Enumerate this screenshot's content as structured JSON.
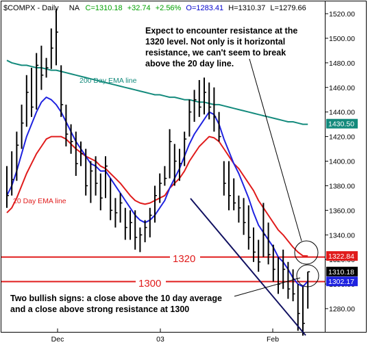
{
  "header": {
    "symbol": "$COMPX - Daily",
    "exchange": "NA",
    "close": "C=1310.18",
    "change": "+32.74",
    "change_pct": "+2.56%",
    "open": "O=1283.41",
    "high": "H=1310.37",
    "low": "L=1279.66"
  },
  "colors": {
    "background": "#ffffff",
    "price_bars": "#000000",
    "ema200": "#138a7c",
    "ema20": "#e01b1b",
    "ema10": "#1e22e0",
    "resistance": "#e01b1b",
    "trendline": "#101060",
    "header_up": "#00a000",
    "header_link": "#0000cc"
  },
  "chart_data": {
    "type": "ohlc",
    "ylim": [
      1240,
      1530
    ],
    "yticks": [
      "1520.00",
      "1500.00",
      "1480.00",
      "1460.00",
      "1440.00",
      "1420.00",
      "1400.00",
      "1380.00",
      "1360.00",
      "1340.00",
      "1320.00",
      "1300.00",
      "1280.00"
    ],
    "xticks": [
      "Dec",
      "03",
      "Feb"
    ],
    "bars": [
      {
        "h": 1396,
        "l": 1362,
        "c": 1372
      },
      {
        "h": 1408,
        "l": 1372,
        "c": 1385
      },
      {
        "h": 1424,
        "l": 1384,
        "c": 1413
      },
      {
        "h": 1446,
        "l": 1410,
        "c": 1431
      },
      {
        "h": 1470,
        "l": 1428,
        "c": 1456
      },
      {
        "h": 1476,
        "l": 1436,
        "c": 1444
      },
      {
        "h": 1488,
        "l": 1442,
        "c": 1478
      },
      {
        "h": 1494,
        "l": 1458,
        "c": 1470
      },
      {
        "h": 1484,
        "l": 1468,
        "c": 1476
      },
      {
        "h": 1508,
        "l": 1475,
        "c": 1492
      },
      {
        "h": 1524,
        "l": 1478,
        "c": 1505
      },
      {
        "h": 1478,
        "l": 1436,
        "c": 1446
      },
      {
        "h": 1446,
        "l": 1412,
        "c": 1422
      },
      {
        "h": 1430,
        "l": 1406,
        "c": 1416
      },
      {
        "h": 1424,
        "l": 1388,
        "c": 1398
      },
      {
        "h": 1416,
        "l": 1396,
        "c": 1406
      },
      {
        "h": 1410,
        "l": 1372,
        "c": 1380
      },
      {
        "h": 1400,
        "l": 1366,
        "c": 1392
      },
      {
        "h": 1404,
        "l": 1372,
        "c": 1382
      },
      {
        "h": 1390,
        "l": 1360,
        "c": 1370
      },
      {
        "h": 1404,
        "l": 1370,
        "c": 1396
      },
      {
        "h": 1386,
        "l": 1352,
        "c": 1360
      },
      {
        "h": 1370,
        "l": 1346,
        "c": 1358
      },
      {
        "h": 1374,
        "l": 1350,
        "c": 1366
      },
      {
        "h": 1362,
        "l": 1336,
        "c": 1346
      },
      {
        "h": 1360,
        "l": 1336,
        "c": 1350
      },
      {
        "h": 1360,
        "l": 1328,
        "c": 1338
      },
      {
        "h": 1346,
        "l": 1326,
        "c": 1340
      },
      {
        "h": 1352,
        "l": 1334,
        "c": 1346
      },
      {
        "h": 1362,
        "l": 1338,
        "c": 1356
      },
      {
        "h": 1380,
        "l": 1350,
        "c": 1372
      },
      {
        "h": 1390,
        "l": 1366,
        "c": 1382
      },
      {
        "h": 1396,
        "l": 1380,
        "c": 1386
      },
      {
        "h": 1426,
        "l": 1386,
        "c": 1416
      },
      {
        "h": 1414,
        "l": 1380,
        "c": 1400
      },
      {
        "h": 1410,
        "l": 1384,
        "c": 1398
      },
      {
        "h": 1424,
        "l": 1396,
        "c": 1418
      },
      {
        "h": 1450,
        "l": 1420,
        "c": 1440
      },
      {
        "h": 1458,
        "l": 1432,
        "c": 1450
      },
      {
        "h": 1466,
        "l": 1436,
        "c": 1444
      },
      {
        "h": 1468,
        "l": 1438,
        "c": 1456
      },
      {
        "h": 1464,
        "l": 1434,
        "c": 1444
      },
      {
        "h": 1460,
        "l": 1424,
        "c": 1436
      },
      {
        "h": 1440,
        "l": 1416,
        "c": 1420
      },
      {
        "h": 1400,
        "l": 1372,
        "c": 1382
      },
      {
        "h": 1400,
        "l": 1360,
        "c": 1372
      },
      {
        "h": 1386,
        "l": 1360,
        "c": 1366
      },
      {
        "h": 1372,
        "l": 1350,
        "c": 1362
      },
      {
        "h": 1370,
        "l": 1340,
        "c": 1350
      },
      {
        "h": 1364,
        "l": 1328,
        "c": 1338
      },
      {
        "h": 1346,
        "l": 1318,
        "c": 1326
      },
      {
        "h": 1336,
        "l": 1310,
        "c": 1318
      },
      {
        "h": 1366,
        "l": 1322,
        "c": 1340
      },
      {
        "h": 1350,
        "l": 1316,
        "c": 1324
      },
      {
        "h": 1332,
        "l": 1302,
        "c": 1312
      },
      {
        "h": 1322,
        "l": 1292,
        "c": 1300
      },
      {
        "h": 1328,
        "l": 1296,
        "c": 1312
      },
      {
        "h": 1318,
        "l": 1288,
        "c": 1296
      },
      {
        "h": 1312,
        "l": 1286,
        "c": 1292
      },
      {
        "h": 1300,
        "l": 1262,
        "c": 1276
      },
      {
        "h": 1298,
        "l": 1258,
        "c": 1268
      },
      {
        "h": 1310,
        "l": 1280,
        "c": 1310
      }
    ],
    "ema200": {
      "name": "200 Day EMA line",
      "values": [
        1482,
        1480,
        1479,
        1478,
        1478,
        1477,
        1476,
        1476,
        1475,
        1474,
        1474,
        1473,
        1472,
        1471,
        1470,
        1469,
        1468,
        1467,
        1466,
        1465,
        1464,
        1463,
        1462,
        1461,
        1460,
        1459,
        1458,
        1457,
        1456,
        1455,
        1454,
        1454,
        1453,
        1452,
        1452,
        1451,
        1450,
        1450,
        1449,
        1448,
        1448,
        1447,
        1446,
        1446,
        1445,
        1444,
        1443,
        1442,
        1441,
        1440,
        1439,
        1438,
        1437,
        1436,
        1435,
        1434,
        1433,
        1432,
        1432,
        1431,
        1430,
        1430
      ]
    },
    "ema20": {
      "name": "20 Day EMA line",
      "values": [
        1358,
        1362,
        1370,
        1380,
        1390,
        1398,
        1406,
        1412,
        1418,
        1420,
        1420,
        1420,
        1418,
        1414,
        1410,
        1407,
        1404,
        1402,
        1400,
        1396,
        1394,
        1390,
        1386,
        1382,
        1377,
        1372,
        1368,
        1366,
        1365,
        1366,
        1368,
        1370,
        1372,
        1378,
        1382,
        1386,
        1392,
        1400,
        1406,
        1412,
        1416,
        1420,
        1419,
        1416,
        1410,
        1404,
        1398,
        1394,
        1388,
        1382,
        1376,
        1368,
        1362,
        1356,
        1350,
        1344,
        1340,
        1335,
        1330,
        1326,
        1323,
        1322.84
      ]
    },
    "ema10": {
      "values": [
        1372,
        1380,
        1392,
        1406,
        1420,
        1430,
        1440,
        1448,
        1452,
        1450,
        1446,
        1440,
        1432,
        1424,
        1416,
        1410,
        1404,
        1398,
        1396,
        1392,
        1392,
        1386,
        1380,
        1374,
        1368,
        1362,
        1356,
        1352,
        1350,
        1352,
        1356,
        1362,
        1368,
        1378,
        1386,
        1394,
        1404,
        1414,
        1422,
        1428,
        1434,
        1440,
        1438,
        1430,
        1418,
        1408,
        1398,
        1390,
        1380,
        1370,
        1358,
        1348,
        1342,
        1336,
        1330,
        1322,
        1318,
        1312,
        1305,
        1300,
        1298,
        1302.17
      ]
    },
    "levels": [
      {
        "label": "1320",
        "value": 1322
      },
      {
        "label": "1300",
        "value": 1302
      }
    ],
    "price_tags": [
      {
        "label": "1430.50",
        "value": 1430.5,
        "color": "#138a7c"
      },
      {
        "label": "1322.84",
        "value": 1322.84,
        "color": "#e01b1b"
      },
      {
        "label": "1310.18",
        "value": 1310.18,
        "color": "#000000"
      },
      {
        "label": "1302.17",
        "value": 1302.17,
        "color": "#1e22e0"
      }
    ]
  },
  "annotations": {
    "resistance_note": [
      "Expect to encounter resistance at the",
      "1320 level.  Not only is it horizontal",
      "resistance, we can't seem to break",
      "above the 20 day line."
    ],
    "bullish_note": [
      "Two bullish signs: a close above the 10 day average",
      "and a close above strong resistance at 1300"
    ]
  }
}
